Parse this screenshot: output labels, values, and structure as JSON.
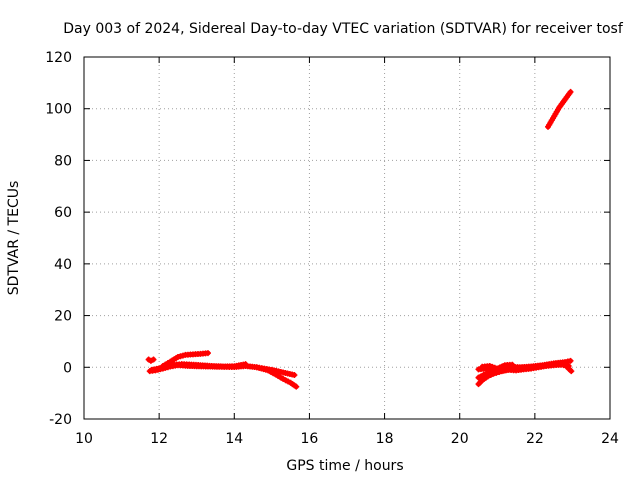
{
  "chart_data": {
    "type": "scatter",
    "title": "Day 003 of 2024, Sidereal Day-to-day VTEC variation (SDTVAR) for receiver tosf",
    "xlabel": "GPS time / hours",
    "ylabel": "SDTVAR / TECUs",
    "xlim": [
      10,
      24
    ],
    "ylim": [
      -20,
      120
    ],
    "xticks": [
      "10",
      "12",
      "14",
      "16",
      "18",
      "20",
      "22",
      "24"
    ],
    "yticks": [
      "-20",
      "0",
      "20",
      "40",
      "60",
      "80",
      "100",
      "120"
    ],
    "grid": true,
    "legend": "none",
    "color": "#ff0000",
    "series": [
      {
        "x": [
          11.72,
          11.78,
          11.85
        ],
        "y": [
          3.0,
          2.5,
          3.0
        ]
      },
      {
        "x": [
          11.75,
          11.9,
          12.1,
          12.3,
          12.5,
          12.7,
          13.0,
          13.3,
          13.6,
          14.0,
          14.3,
          14.6,
          15.0,
          15.3,
          15.6
        ],
        "y": [
          -1.5,
          -1.2,
          -0.5,
          0.3,
          0.8,
          0.6,
          0.4,
          0.3,
          0.2,
          0.1,
          0.5,
          0.0,
          -1.0,
          -2.0,
          -3.0
        ]
      },
      {
        "x": [
          11.8,
          12.0,
          12.2,
          12.4,
          12.6,
          12.8,
          13.1,
          13.4,
          13.7,
          14.0,
          14.3
        ],
        "y": [
          -1.0,
          -0.4,
          0.6,
          1.0,
          1.2,
          1.1,
          0.8,
          0.5,
          0.3,
          0.4,
          1.2
        ]
      },
      {
        "x": [
          12.1,
          12.3,
          12.5,
          12.7,
          12.9,
          13.1,
          13.3
        ],
        "y": [
          0.5,
          2.2,
          4.0,
          4.8,
          5.0,
          5.2,
          5.5
        ]
      },
      {
        "x": [
          14.6,
          14.9,
          15.1,
          15.3,
          15.5,
          15.65
        ],
        "y": [
          0.0,
          -1.2,
          -2.8,
          -4.5,
          -6.0,
          -7.5
        ]
      },
      {
        "x": [
          20.5,
          20.7,
          20.9,
          21.1,
          21.3,
          21.5,
          21.7,
          21.9,
          22.1,
          22.3,
          22.5,
          22.7,
          22.9
        ],
        "y": [
          -4.0,
          -2.5,
          -1.8,
          -1.5,
          -1.0,
          -1.2,
          -0.8,
          -0.5,
          0.0,
          0.5,
          0.8,
          1.0,
          0.5
        ]
      },
      {
        "x": [
          20.5,
          20.7,
          20.9,
          21.1,
          21.3,
          21.6,
          21.9,
          22.2,
          22.5,
          22.8,
          22.95
        ],
        "y": [
          -0.8,
          -0.5,
          -1.0,
          -0.3,
          0.2,
          0.0,
          0.3,
          0.8,
          1.5,
          2.0,
          2.5
        ]
      },
      {
        "x": [
          20.5,
          20.6,
          20.75,
          20.9,
          21.05,
          21.2,
          21.4
        ],
        "y": [
          -6.5,
          -5.0,
          -3.5,
          -2.5,
          -1.8,
          -1.2,
          -0.5
        ]
      },
      {
        "x": [
          20.6,
          20.8,
          21.0,
          21.2,
          21.4
        ],
        "y": [
          0.2,
          0.5,
          -0.5,
          0.8,
          1.0
        ]
      },
      {
        "x": [
          22.8,
          22.9,
          22.97
        ],
        "y": [
          1.0,
          -0.5,
          -1.5
        ]
      },
      {
        "x": [
          22.35,
          22.45,
          22.55,
          22.65,
          22.75,
          22.85,
          22.95
        ],
        "y": [
          93,
          95.5,
          98,
          100.5,
          102.5,
          104.5,
          106.5
        ]
      }
    ]
  }
}
